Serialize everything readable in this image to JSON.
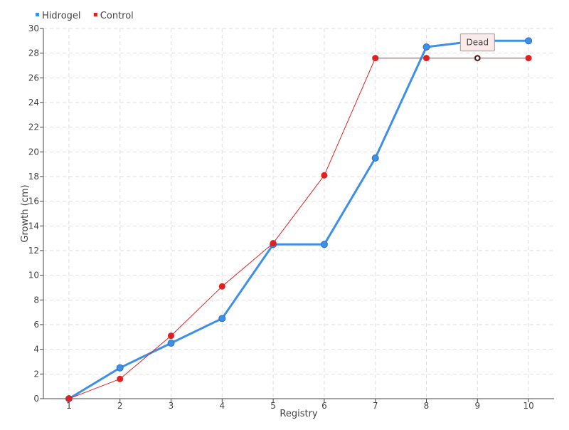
{
  "chart_data": {
    "type": "line",
    "xlabel": "Registry",
    "ylabel": "Growth (cm)",
    "x": [
      1,
      2,
      3,
      4,
      5,
      6,
      7,
      8,
      9,
      10
    ],
    "xlim": [
      0.5,
      10.5
    ],
    "ylim": [
      0,
      30
    ],
    "yticks": [
      0,
      2,
      4,
      6,
      8,
      10,
      12,
      14,
      16,
      18,
      20,
      22,
      24,
      26,
      28,
      30
    ],
    "grid": true,
    "legend_position": "top-left",
    "series": [
      {
        "name": "Hidrogel",
        "color": "#3d8fe8",
        "values": [
          0,
          2.5,
          4.5,
          6.5,
          12.5,
          12.5,
          19.5,
          28.5,
          29,
          29
        ]
      },
      {
        "name": "Control",
        "color": "#e02020",
        "values": [
          0,
          1.6,
          5.1,
          9.1,
          12.6,
          18.1,
          27.6,
          27.6,
          27.6,
          27.6
        ]
      }
    ],
    "annotations": [
      {
        "text": "Dead",
        "series": "Control",
        "x": 9
      }
    ]
  }
}
